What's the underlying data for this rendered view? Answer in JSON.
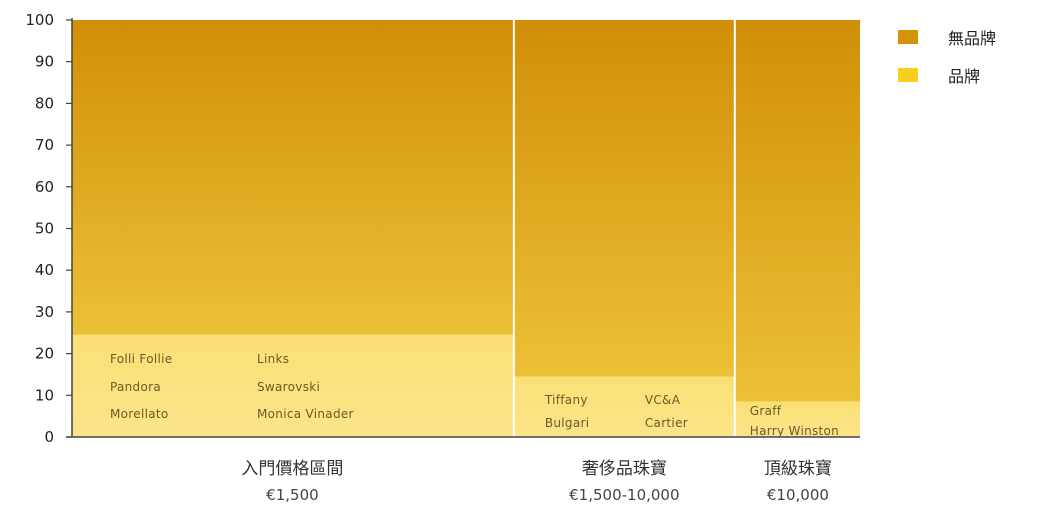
{
  "chart_data": {
    "type": "bar",
    "stacked": true,
    "variable_width": true,
    "ylim": [
      0,
      100
    ],
    "yticks": [
      0,
      10,
      20,
      30,
      40,
      50,
      60,
      70,
      80,
      90,
      100
    ],
    "grid": false,
    "legend_position": "top-right",
    "categories": [
      {
        "name": "入門價格區間",
        "price": "€1,500",
        "width_share": 3,
        "branded": 24.5,
        "unbranded": 75.5,
        "brands": [
          "Folli Follie",
          "Links",
          "Pandora",
          "Swarovski",
          "Morellato",
          "Monica Vinader"
        ]
      },
      {
        "name": "奢侈品珠寶",
        "price": "€1,500-10,000",
        "width_share": 1.5,
        "branded": 14.5,
        "unbranded": 85.5,
        "brands": [
          "Tiffany",
          "VC&A",
          "Bulgari",
          "Cartier"
        ]
      },
      {
        "name": "頂級珠寶",
        "price": "€10,000",
        "width_share": 0.85,
        "branded": 8.5,
        "unbranded": 91.5,
        "brands": [
          "Graff",
          "Harry Winston"
        ]
      }
    ],
    "series": [
      {
        "name": "無品牌",
        "color": "#d4940a"
      },
      {
        "name": "品牌",
        "color": "#f7cf1d"
      }
    ]
  }
}
